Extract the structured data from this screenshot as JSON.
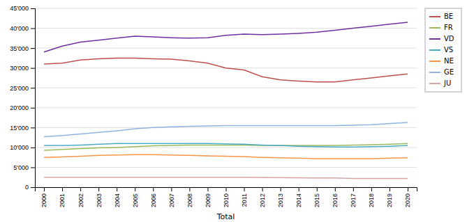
{
  "chart_data": {
    "type": "line",
    "xlabel": "Total",
    "x": [
      2000,
      2001,
      2002,
      2003,
      2004,
      2005,
      2006,
      2007,
      2008,
      2009,
      2010,
      2011,
      2012,
      2013,
      2014,
      2015,
      2016,
      2017,
      2018,
      2019,
      2020
    ],
    "series": [
      {
        "name": "BE",
        "color": "#C0504D",
        "values": [
          31000,
          31200,
          32000,
          32300,
          32500,
          32500,
          32300,
          32200,
          31800,
          31200,
          30000,
          29500,
          27800,
          27000,
          26700,
          26500,
          26500,
          27000,
          27500,
          28000,
          28500
        ]
      },
      {
        "name": "FR",
        "color": "#9BBB59",
        "values": [
          9300,
          9500,
          9700,
          9900,
          10000,
          10200,
          10400,
          10500,
          10600,
          10600,
          10600,
          10600,
          10500,
          10500,
          10500,
          10500,
          10500,
          10600,
          10700,
          10800,
          11000
        ]
      },
      {
        "name": "VD",
        "color": "#7030A0",
        "values": [
          34000,
          35500,
          36500,
          37000,
          37500,
          38000,
          37800,
          37600,
          37500,
          37600,
          38200,
          38500,
          38400,
          38500,
          38700,
          39000,
          39500,
          40000,
          40500,
          41000,
          41500
        ]
      },
      {
        "name": "VS",
        "color": "#4BACC6",
        "values": [
          10500,
          10500,
          10600,
          10800,
          11000,
          11000,
          11000,
          11000,
          11000,
          11000,
          10900,
          10800,
          10600,
          10500,
          10300,
          10200,
          10100,
          10100,
          10200,
          10300,
          10500
        ]
      },
      {
        "name": "NE",
        "color": "#F79646",
        "values": [
          7500,
          7600,
          7800,
          8000,
          8100,
          8200,
          8200,
          8100,
          8000,
          7900,
          7800,
          7700,
          7500,
          7400,
          7300,
          7200,
          7200,
          7200,
          7200,
          7300,
          7400
        ]
      },
      {
        "name": "GE",
        "color": "#8DB4E2",
        "values": [
          12700,
          13000,
          13400,
          13800,
          14200,
          14700,
          15000,
          15200,
          15300,
          15400,
          15500,
          15500,
          15500,
          15500,
          15500,
          15500,
          15500,
          15600,
          15700,
          16000,
          16300
        ]
      },
      {
        "name": "JU",
        "color": "#D9A2A2",
        "values": [
          2500,
          2500,
          2500,
          2500,
          2500,
          2500,
          2500,
          2500,
          2500,
          2500,
          2500,
          2500,
          2450,
          2400,
          2350,
          2300,
          2300,
          2200,
          2200,
          2200,
          2200
        ]
      }
    ],
    "xlim": [
      1999.5,
      2020.5
    ],
    "xticks": [
      2000,
      2001,
      2002,
      2003,
      2004,
      2005,
      2006,
      2007,
      2008,
      2009,
      2010,
      2011,
      2012,
      2013,
      2014,
      2015,
      2016,
      2017,
      2018,
      2019,
      2020
    ],
    "ylim": [
      0,
      45000
    ],
    "yticks": [
      0,
      {
        "value": 5000,
        "label": "5'000"
      },
      {
        "value": 10000,
        "label": "10'000"
      },
      {
        "value": 15000,
        "label": "15'000"
      },
      {
        "value": 20000,
        "label": "20'000"
      },
      {
        "value": 25000,
        "label": "25'000"
      },
      {
        "value": 30000,
        "label": "30'000"
      },
      {
        "value": 35000,
        "label": "35'000"
      },
      {
        "value": 40000,
        "label": "40'000"
      },
      {
        "value": 45000,
        "label": "45'000"
      }
    ],
    "grid": true,
    "legend": "right"
  }
}
